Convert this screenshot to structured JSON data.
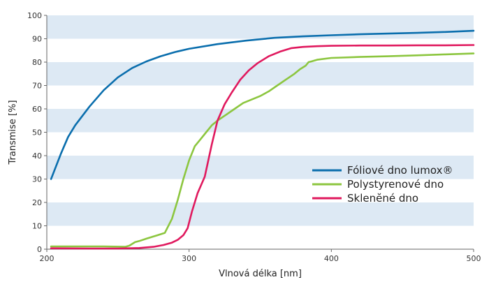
{
  "chart_data": {
    "type": "line",
    "title": "",
    "xlabel": "Vlnová délka [nm]",
    "ylabel": "Transmise [%]",
    "xlim": [
      200,
      500
    ],
    "ylim": [
      0,
      100
    ],
    "x_ticks": [
      200,
      300,
      400,
      500
    ],
    "y_ticks": [
      0,
      10,
      20,
      30,
      40,
      50,
      60,
      70,
      80,
      90,
      100
    ],
    "grid": "alternating horizontal bands",
    "band_colors": [
      "#ffffff",
      "#dde9f4"
    ],
    "legend_position": "right, lower-middle",
    "series": [
      {
        "name": "Fóliové dno lumox®",
        "color": "#0a6ead",
        "x": [
          203,
          210,
          215,
          220,
          230,
          240,
          250,
          260,
          270,
          280,
          290,
          300,
          320,
          340,
          360,
          380,
          400,
          420,
          440,
          460,
          480,
          500
        ],
        "y": [
          30,
          41,
          48,
          53,
          61,
          68,
          73.5,
          77.5,
          80.3,
          82.5,
          84.3,
          85.7,
          87.7,
          89.2,
          90.4,
          91.0,
          91.5,
          91.9,
          92.2,
          92.5,
          92.9,
          93.4
        ]
      },
      {
        "name": "Polystyrenové dno",
        "color": "#8cc63f",
        "x": [
          203,
          220,
          240,
          255,
          258,
          262,
          265,
          270,
          278,
          283,
          288,
          292,
          296,
          300,
          304,
          308,
          312,
          316,
          320,
          326,
          332,
          338,
          344,
          350,
          356,
          362,
          368,
          374,
          378,
          382,
          384,
          386,
          390,
          400,
          420,
          440,
          460,
          480,
          500
        ],
        "y": [
          1.2,
          1.2,
          1.2,
          1.0,
          1.5,
          3.0,
          3.5,
          4.5,
          6.0,
          7.0,
          13,
          21,
          30,
          38,
          44,
          47,
          50,
          53,
          55,
          57.5,
          60,
          62.5,
          64,
          65.5,
          67.5,
          70,
          72.5,
          75,
          77,
          78.5,
          80,
          80.3,
          81,
          81.8,
          82.2,
          82.5,
          82.9,
          83.3,
          83.7
        ]
      },
      {
        "name": "Sklenĕné dno",
        "color": "#e0195e",
        "x": [
          203,
          230,
          250,
          265,
          275,
          282,
          288,
          292,
          296,
          299,
          302,
          306,
          311,
          316,
          320,
          325,
          330,
          336,
          342,
          348,
          356,
          364,
          372,
          380,
          390,
          400,
          420,
          440,
          460,
          480,
          500
        ],
        "y": [
          0.4,
          0.3,
          0.3,
          0.5,
          1.0,
          1.8,
          2.8,
          4.0,
          6.0,
          9.0,
          16,
          24,
          31,
          45,
          55,
          62,
          67,
          72.5,
          76.5,
          79.5,
          82.5,
          84.5,
          86,
          86.5,
          86.8,
          87,
          87.1,
          87.1,
          87.2,
          87.2,
          87.3
        ]
      }
    ]
  }
}
